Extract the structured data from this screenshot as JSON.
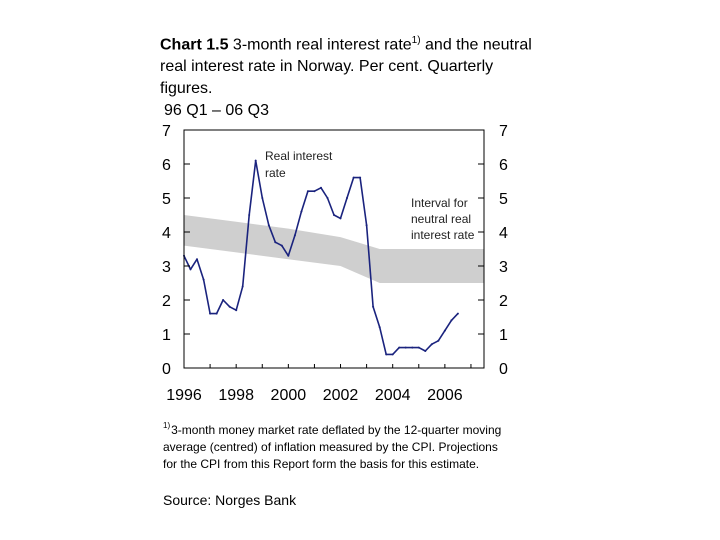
{
  "title": {
    "lead": "Chart 1.5",
    "text": " 3-month real interest rate",
    "sup": "1)",
    "text2": " and the neutral real interest rate in Norway. Per cent. Quarterly figures.",
    "period": "96 Q1 – 06 Q3"
  },
  "colors": {
    "line": "#1a237e",
    "band": "#cfcfcf",
    "axis": "#000000"
  },
  "chart_data": {
    "type": "line",
    "title": "3-month real interest rate and the neutral real interest rate in Norway",
    "xlabel": "",
    "ylabel": "Per cent",
    "xlim": [
      1996,
      2007.5
    ],
    "ylim": [
      0,
      7
    ],
    "x_ticks": [
      "1996",
      "1998",
      "2000",
      "2002",
      "2004",
      "2006"
    ],
    "x_tick_values": [
      1996,
      1998,
      2000,
      2002,
      2004,
      2006
    ],
    "y_ticks_left": [
      "0",
      "1",
      "2",
      "3",
      "4",
      "5",
      "6",
      "7"
    ],
    "y_ticks_right": [
      "0",
      "1",
      "2",
      "3",
      "4",
      "5",
      "6",
      "7"
    ],
    "y_tick_values": [
      0,
      1,
      2,
      3,
      4,
      5,
      6,
      7
    ],
    "series": [
      {
        "name": "Real interest rate",
        "type": "line",
        "x": [
          1996.0,
          1996.25,
          1996.5,
          1996.75,
          1997.0,
          1997.25,
          1997.5,
          1997.75,
          1998.0,
          1998.25,
          1998.5,
          1998.75,
          1999.0,
          1999.25,
          1999.5,
          1999.75,
          2000.0,
          2000.25,
          2000.5,
          2000.75,
          2001.0,
          2001.25,
          2001.5,
          2001.75,
          2002.0,
          2002.25,
          2002.5,
          2002.75,
          2003.0,
          2003.25,
          2003.5,
          2003.75,
          2004.0,
          2004.25,
          2004.5,
          2004.75,
          2005.0,
          2005.25,
          2005.5,
          2005.75,
          2006.0,
          2006.25,
          2006.5
        ],
        "y": [
          3.3,
          2.9,
          3.2,
          2.6,
          1.6,
          1.6,
          2.0,
          1.8,
          1.7,
          2.4,
          4.5,
          6.1,
          5.0,
          4.2,
          3.7,
          3.6,
          3.3,
          3.9,
          4.6,
          5.2,
          5.2,
          5.3,
          5.0,
          4.5,
          4.4,
          5.0,
          5.6,
          5.6,
          4.2,
          1.8,
          1.2,
          0.4,
          0.4,
          0.6,
          0.6,
          0.6,
          0.6,
          0.5,
          0.7,
          0.8,
          1.1,
          1.4,
          1.6
        ]
      },
      {
        "name": "Interval for neutral real interest rate",
        "type": "band",
        "x": [
          1996.0,
          1998.0,
          2000.0,
          2002.0,
          2003.5,
          2004.0,
          2007.5
        ],
        "y_upper": [
          4.5,
          4.3,
          4.1,
          3.85,
          3.5,
          3.5,
          3.5
        ],
        "y_lower": [
          3.6,
          3.4,
          3.2,
          3.0,
          2.5,
          2.5,
          2.5
        ]
      }
    ],
    "annotations": {
      "real_rate_label": [
        "Real interest",
        "rate"
      ],
      "band_label": [
        "Interval for",
        "neutral real",
        "interest rate"
      ]
    }
  },
  "footnote": {
    "marker": "1)",
    "text": "3-month money market rate deflated by the 12-quarter moving average (centred) of inflation measured by the CPI. Projections for the CPI from this Report form the basis for this estimate."
  },
  "source": "Source: Norges Bank"
}
